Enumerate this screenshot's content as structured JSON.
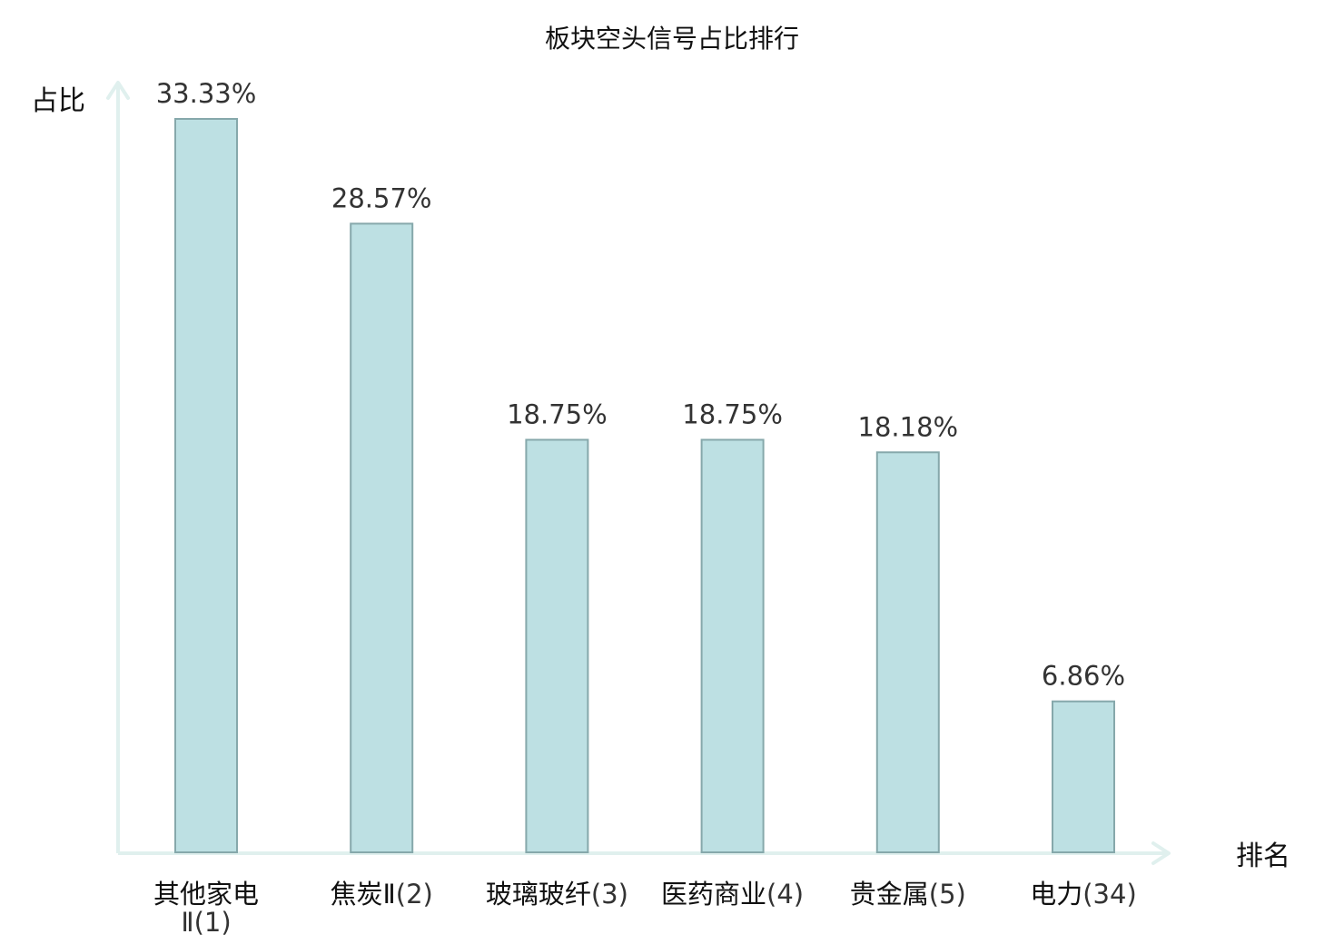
{
  "chart_data": {
    "type": "bar",
    "title": "板块空头信号占比排行",
    "xlabel": "排名",
    "ylabel": "占比",
    "ylim": [
      0,
      33.33
    ],
    "grid": false,
    "categories": [
      "其他家电Ⅱ(1)",
      "焦炭Ⅱ(2)",
      "玻璃玻纤(3)",
      "医药商业(4)",
      "贵金属(5)",
      "电力(34)"
    ],
    "category_names": [
      "其他家电Ⅱ",
      "焦炭Ⅱ",
      "玻璃玻纤",
      "医药商业",
      "贵金属",
      "电力"
    ],
    "category_ranks": [
      "(1)",
      "(2)",
      "(3)",
      "(4)",
      "(5)",
      "(34)"
    ],
    "values": [
      33.33,
      28.57,
      18.75,
      18.75,
      18.18,
      6.86
    ],
    "value_labels": [
      "33.33%",
      "28.57%",
      "18.75%",
      "18.75%",
      "18.18%",
      "6.86%"
    ],
    "highlight_category": "电力(34)"
  },
  "colors": {
    "bar_fill": "#bde0e3",
    "bar_stroke": "#86a8ab",
    "axis": "#e0f0ee",
    "highlight_text": "#e8161b",
    "text": "#111111",
    "value_text": "#333333"
  }
}
